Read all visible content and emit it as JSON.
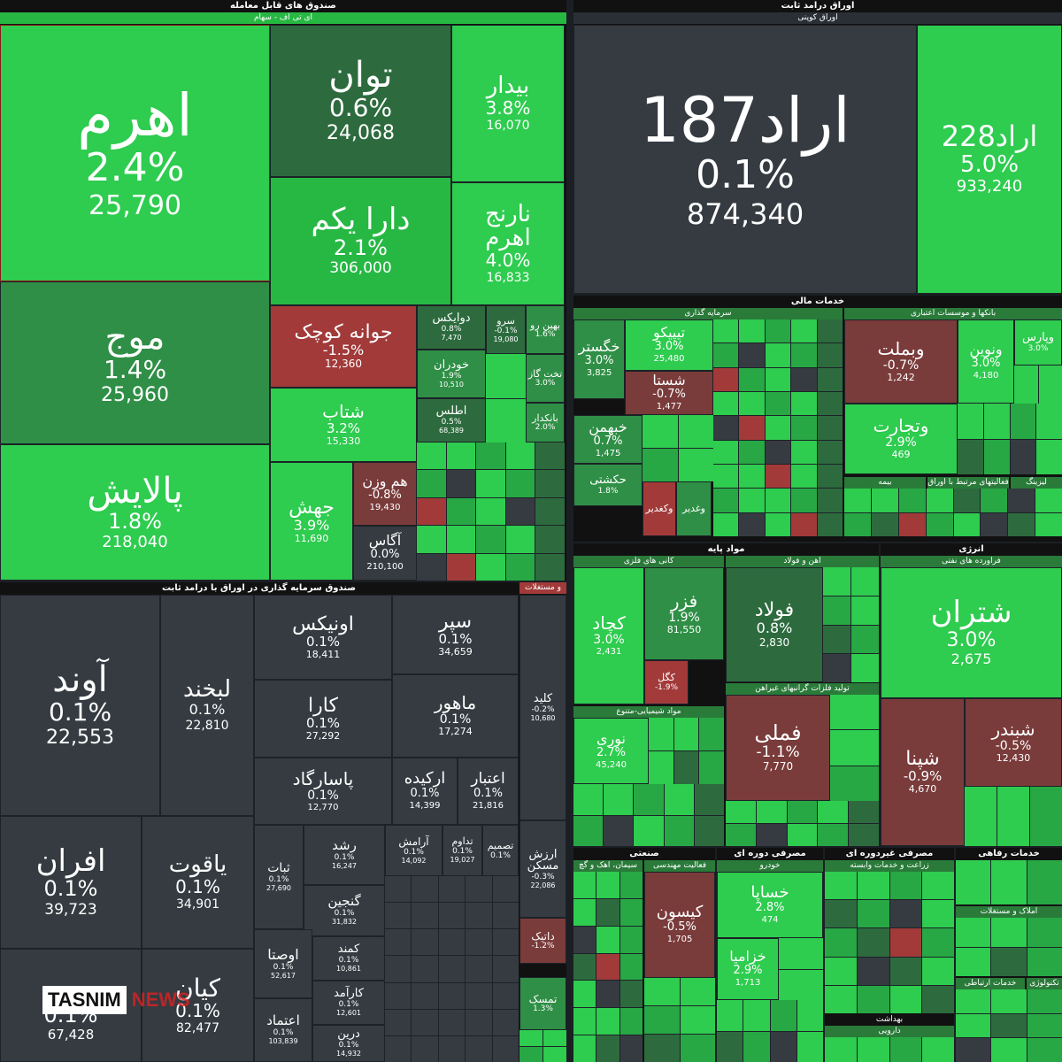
{
  "sections": {
    "etf_stock": {
      "title": "صندوق های قابل معامله",
      "sub": "ای تی اف - سهام"
    },
    "fixed_income": {
      "title": "اوراق درامد ثابت",
      "sub": "اوراق کوپنی"
    },
    "fixed_fund": {
      "title": "صندوق سرمایه گذاری در اوراق با درامد ثابت",
      "sub2": "و مستغلات"
    },
    "financial": {
      "title": "خدمات مالی",
      "sub_a": "سرمایه گذاری",
      "sub_b": "بانکها و موسسات اعتباری",
      "sub_c": "بیمه",
      "sub_d": "فعالیتهای مرتبط با اوراق بهادار",
      "sub_e": "لیزینگ"
    },
    "basic": {
      "title": "مواد پایه",
      "sub_a": "کانی های فلزی",
      "sub_b": "اهن و فولاد",
      "sub_c": "مواد شیمیایی-متنوع",
      "sub_d": "تولید فلزات گرانبهای غیراهن"
    },
    "energy": {
      "title": "انرژی",
      "sub": "فراورده های نفتی"
    },
    "industrial": {
      "title": "صنعتی",
      "sub_a": "سیمان، اهک و گچ",
      "sub_b": "فعالیت مهندسی"
    },
    "cyclical": {
      "title": "مصرفی دوره ای",
      "sub": "خودرو"
    },
    "noncyclical": {
      "title": "مصرفی غیردوره ای",
      "sub": "زراعت و خدمات وابسته"
    },
    "services": {
      "title": "خدمات رفاهی",
      "sub": "املاک و مستغلات",
      "sub2": "خدمات ارتباطی",
      "sub3": "تکنولوژی"
    },
    "health": {
      "title": "بهداشت",
      "sub": "دارویی"
    }
  },
  "tiles": {
    "ahrom": {
      "name": "اهرم",
      "pct": "2.4%",
      "val": "25,790"
    },
    "tavan": {
      "name": "توان",
      "pct": "0.6%",
      "val": "24,068"
    },
    "bidar": {
      "name": "بیدار",
      "pct": "3.8%",
      "val": "16,070"
    },
    "darayekom": {
      "name": "دارا یکم",
      "pct": "2.1%",
      "val": "306,000"
    },
    "narenj": {
      "name": "نارنج اهرم",
      "pct": "4.0%",
      "val": "16,833"
    },
    "mowj": {
      "name": "موج",
      "pct": "1.4%",
      "val": "25,960"
    },
    "palayesh": {
      "name": "پالایش",
      "pct": "1.8%",
      "val": "218,040"
    },
    "javaneh": {
      "name": "جوانه کوچک",
      "pct": "-1.5%",
      "val": "12,360"
    },
    "shetab": {
      "name": "شتاب",
      "pct": "3.2%",
      "val": "15,330"
    },
    "jahesh": {
      "name": "جهش",
      "pct": "3.9%",
      "val": "11,690"
    },
    "hamvazn": {
      "name": "هم وزن",
      "pct": "-0.8%",
      "val": "19,430"
    },
    "agas": {
      "name": "آگاس",
      "pct": "0.0%",
      "val": "210,100"
    },
    "davix": {
      "name": "دوایکس",
      "pct": "0.8%",
      "val": "7,470"
    },
    "khodran": {
      "name": "خودران",
      "pct": "1.9%",
      "val": "10,510"
    },
    "atlas": {
      "name": "اطلس",
      "pct": "0.5%",
      "val": "68,389"
    },
    "sarv": {
      "name": "سرو",
      "pct": "-0.1%",
      "val": "19,080"
    },
    "bahinro": {
      "name": "بهین رو",
      "pct": "1.6%",
      "val": ""
    },
    "takhtgaz": {
      "name": "تخت گاز",
      "pct": "3.0%",
      "val": ""
    },
    "bankdar": {
      "name": "بانکدار",
      "pct": "2.0%",
      "val": ""
    },
    "arad187": {
      "name": "اراد187",
      "pct": "0.1%",
      "val": "874,340"
    },
    "arad228": {
      "name": "اراد228",
      "pct": "5.0%",
      "val": "933,240"
    },
    "avand": {
      "name": "آوند",
      "pct": "0.1%",
      "val": "22,553"
    },
    "labkhand": {
      "name": "لبخند",
      "pct": "0.1%",
      "val": "22,810"
    },
    "onix": {
      "name": "اونیکس",
      "pct": "0.1%",
      "val": "18,411"
    },
    "separ": {
      "name": "سپر",
      "pct": "0.1%",
      "val": "34,659"
    },
    "kara": {
      "name": "کارا",
      "pct": "0.1%",
      "val": "27,292"
    },
    "mahour": {
      "name": "ماهور",
      "pct": "0.1%",
      "val": "17,274"
    },
    "pasargad": {
      "name": "پاسارگاد",
      "pct": "0.1%",
      "val": "12,770"
    },
    "arkideh": {
      "name": "ارکیده",
      "pct": "0.1%",
      "val": "14,399"
    },
    "etebar": {
      "name": "اعتبار",
      "pct": "0.1%",
      "val": "21,816"
    },
    "afran": {
      "name": "افران",
      "pct": "0.1%",
      "val": "39,723"
    },
    "yaghout": {
      "name": "یاقوت",
      "pct": "0.1%",
      "val": "34,901"
    },
    "kian": {
      "name": "کیان",
      "pct": "0.1%",
      "val": "82,477"
    },
    "bottomleft": {
      "name": "",
      "pct": "0.1%",
      "val": "67,428"
    },
    "kalid": {
      "name": "کلید",
      "pct": "-0.2%",
      "val": "10,680"
    },
    "arzesh": {
      "name": "ارزش مسکن",
      "pct": "-0.3%",
      "val": "22,086"
    },
    "datik": {
      "name": "داتیک",
      "pct": "-1.2%",
      "val": ""
    },
    "tamask": {
      "name": "تمسک",
      "pct": "1.3%",
      "val": ""
    },
    "roshd": {
      "name": "رشد",
      "pct": "0.1%",
      "val": "16,247"
    },
    "ganjin": {
      "name": "گنجین",
      "pct": "0.1%",
      "val": "31,832"
    },
    "sabat": {
      "name": "ثبات",
      "pct": "0.1%",
      "val": "27,690"
    },
    "owsta": {
      "name": "اوصتا",
      "pct": "0.1%",
      "val": "52,617"
    },
    "etemad": {
      "name": "اعتماد",
      "pct": "0.1%",
      "val": "103,839"
    },
    "kamand": {
      "name": "کمند",
      "pct": "0.1%",
      "val": "10,861"
    },
    "karamad": {
      "name": "کارآمد",
      "pct": "0.1%",
      "val": "12,601"
    },
    "dorrin": {
      "name": "درین",
      "pct": "0.1%",
      "val": "14,932"
    },
    "aramesh": {
      "name": "آرامش",
      "pct": "0.1%",
      "val": "14,092"
    },
    "tadavom": {
      "name": "تداوم",
      "pct": "0.1%",
      "val": "19,027"
    },
    "tasmim": {
      "name": "تصمیم",
      "pct": "0.1%",
      "val": ""
    },
    "khegastar": {
      "name": "خگستر",
      "pct": "3.0%",
      "val": "3,825"
    },
    "tipiko": {
      "name": "تیپیکو",
      "pct": "3.0%",
      "val": "25,480"
    },
    "shasta": {
      "name": "شستا",
      "pct": "-0.7%",
      "val": "1,477"
    },
    "khabahman": {
      "name": "خبهمن",
      "pct": "0.7%",
      "val": "1,475"
    },
    "hekshti": {
      "name": "حکشتی",
      "pct": "1.8%",
      "val": ""
    },
    "vabmellat": {
      "name": "وبملت",
      "pct": "-0.7%",
      "val": "1,242"
    },
    "vanovin": {
      "name": "ونوین",
      "pct": "3.0%",
      "val": "4,180"
    },
    "vaparis": {
      "name": "وپارس",
      "pct": "3.0%",
      "val": ""
    },
    "vatejarat": {
      "name": "وتجارت",
      "pct": "2.9%",
      "val": "469"
    },
    "vkhazar": {
      "name": "وکغدیر",
      "pct": "",
      "val": ""
    },
    "vghadir": {
      "name": "وغدیر",
      "pct": "",
      "val": ""
    },
    "kochad": {
      "name": "کچاد",
      "pct": "3.0%",
      "val": "2,431"
    },
    "fazar": {
      "name": "فزر",
      "pct": "1.9%",
      "val": "81,550"
    },
    "koogol": {
      "name": "کگل",
      "pct": "-1.9%",
      "val": ""
    },
    "foolad": {
      "name": "فولاد",
      "pct": "0.8%",
      "val": "2,830"
    },
    "noori": {
      "name": "نوری",
      "pct": "2.7%",
      "val": "45,240"
    },
    "femeli": {
      "name": "فملی",
      "pct": "-1.1%",
      "val": "7,770"
    },
    "shatran": {
      "name": "شتران",
      "pct": "3.0%",
      "val": "2,675"
    },
    "shepna": {
      "name": "شپنا",
      "pct": "-0.9%",
      "val": "4,670"
    },
    "shebandar": {
      "name": "شبندر",
      "pct": "-0.5%",
      "val": "12,430"
    },
    "kisun": {
      "name": "کیسون",
      "pct": "-0.5%",
      "val": "1,705"
    },
    "khasapa": {
      "name": "خساپا",
      "pct": "2.8%",
      "val": "474"
    },
    "khazamia": {
      "name": "خزامیا",
      "pct": "2.9%",
      "val": "1,713"
    }
  },
  "logo": {
    "brand": "TASNIM",
    "news": "NEWS"
  }
}
